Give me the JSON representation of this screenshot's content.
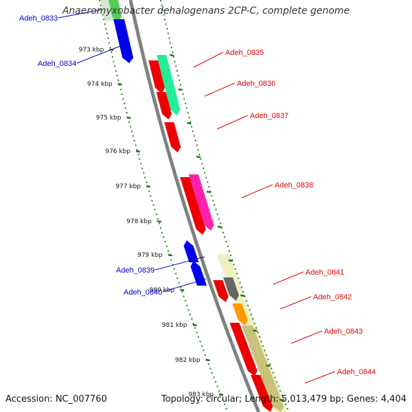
{
  "title": "Anaeromyxobacter dehalogenans 2CP-C, complete genome",
  "footer": {
    "accession": "Accession: NC_007760",
    "summary": "Topology: circular; Length: 5,013,479 bp; Genes: 4,404"
  },
  "colors": {
    "forward_label": "#e00000",
    "reverse_label": "#0000cc",
    "backbone": "#808080",
    "tick": "#1e7a1e"
  },
  "ticks": [
    {
      "label": "973 kbp"
    },
    {
      "label": "974 kbp"
    },
    {
      "label": "975 kbp"
    },
    {
      "label": "976 kbp"
    },
    {
      "label": "977 kbp"
    },
    {
      "label": "978 kbp"
    },
    {
      "label": "979 kbp"
    },
    {
      "label": "980 kbp"
    },
    {
      "label": "981 kbp"
    },
    {
      "label": "982 kbp"
    },
    {
      "label": "983 kbp"
    }
  ],
  "genes": [
    {
      "name": "Adeh_0833",
      "strand": "reverse"
    },
    {
      "name": "Adeh_0834",
      "strand": "reverse"
    },
    {
      "name": "Adeh_0835",
      "strand": "forward"
    },
    {
      "name": "Adeh_0836",
      "strand": "forward"
    },
    {
      "name": "Adeh_0837",
      "strand": "forward"
    },
    {
      "name": "Adeh_0838",
      "strand": "forward"
    },
    {
      "name": "Adeh_0839",
      "strand": "reverse"
    },
    {
      "name": "Adeh_0840",
      "strand": "reverse"
    },
    {
      "name": "Adeh_0841",
      "strand": "forward"
    },
    {
      "name": "Adeh_0842",
      "strand": "forward"
    },
    {
      "name": "Adeh_0843",
      "strand": "forward"
    },
    {
      "name": "Adeh_0844",
      "strand": "forward"
    }
  ]
}
